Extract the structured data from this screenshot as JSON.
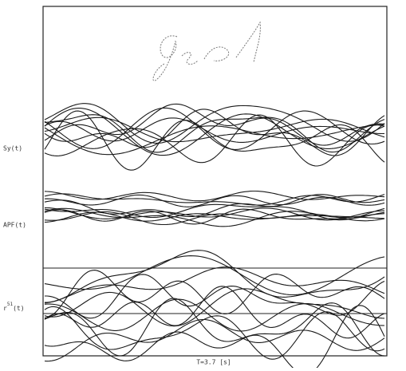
{
  "labels": {
    "sy": "Sy(t)",
    "apf": "APF(t)",
    "r_base": "r",
    "r_sup": "51",
    "r_tail": "(t)"
  },
  "x_label": "T=3.7 [s]"
}
